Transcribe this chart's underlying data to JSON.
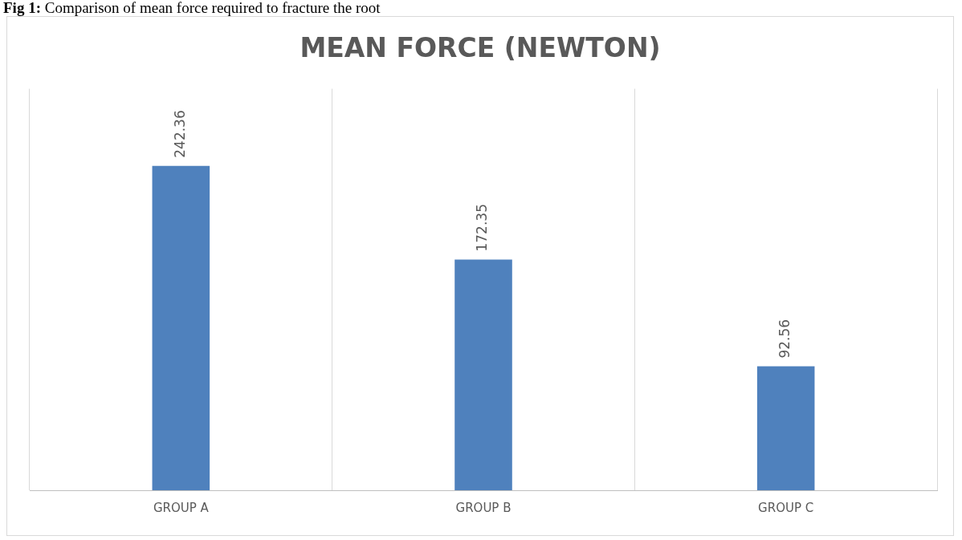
{
  "chart_data": {
    "type": "bar",
    "title": "MEAN FORCE (NEWTON)",
    "annotations": [
      "Fig 1: Comparison of mean force required to fracture the root"
    ],
    "categories": [
      "GROUP A",
      "GROUP B",
      "GROUP C"
    ],
    "values": [
      242.36,
      172.35,
      92.56
    ],
    "color": "#4f81bd",
    "ylim": [
      0,
      300
    ],
    "tick_labels": "x",
    "grid": "x",
    "data_labels": true
  }
}
